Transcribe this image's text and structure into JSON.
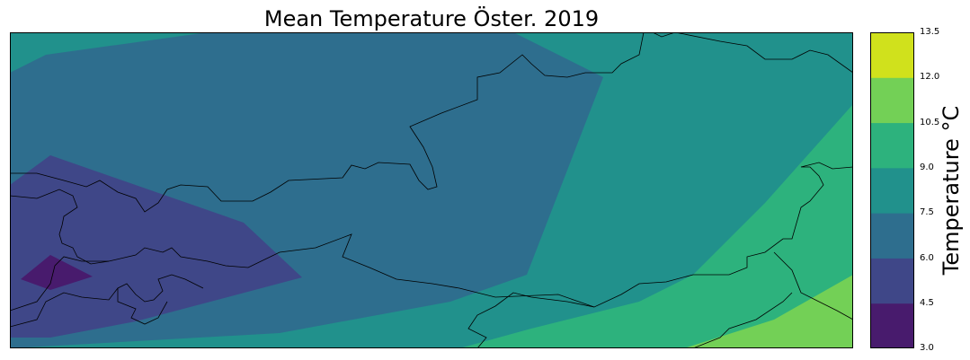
{
  "title": "Mean Temperature Öster. 2019",
  "colorbar": {
    "label": "Temperature °C",
    "ticks": [
      "3.0",
      "4.5",
      "6.0",
      "7.5",
      "9.0",
      "10.5",
      "12.0",
      "13.5"
    ],
    "levels": [
      {
        "min": 3.0,
        "max": 4.5,
        "color": "#481b6d"
      },
      {
        "min": 4.5,
        "max": 6.0,
        "color": "#3f4788"
      },
      {
        "min": 6.0,
        "max": 7.5,
        "color": "#2e6e8e"
      },
      {
        "min": 7.5,
        "max": 9.0,
        "color": "#21918c"
      },
      {
        "min": 9.0,
        "max": 10.5,
        "color": "#2db27d"
      },
      {
        "min": 10.5,
        "max": 12.0,
        "color": "#73d056"
      },
      {
        "min": 12.0,
        "max": 13.5,
        "color": "#d0e11c"
      }
    ]
  }
}
